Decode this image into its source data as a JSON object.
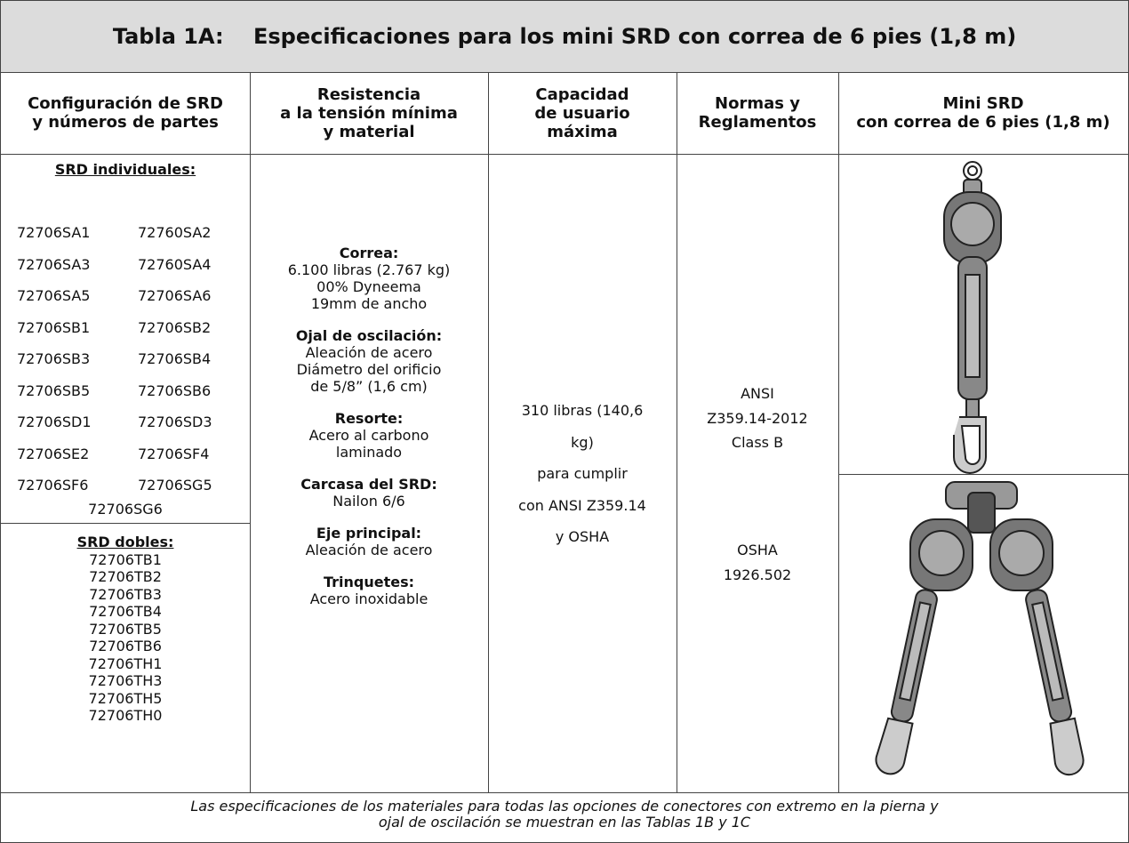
{
  "title": {
    "label": "Tabla 1A:",
    "text": "Especificaciones para los mini SRD con correa de 6 pies (1,8 m)"
  },
  "headers": [
    [
      "Configuración de SRD",
      "y números de partes"
    ],
    [
      "Resistencia",
      "a la tensión mínima",
      "y material"
    ],
    [
      "Capacidad",
      "de usuario",
      "máxima"
    ],
    [
      "Normas y",
      "Reglamentos"
    ],
    [
      "Mini SRD",
      "con correa de 6 pies (1,8 m)"
    ]
  ],
  "individual": {
    "label": "SRD individuales:",
    "rows": [
      [
        "72706SA1",
        "72760SA2"
      ],
      [
        "72706SA3",
        "72760SA4"
      ],
      [
        "72706SA5",
        "72706SA6"
      ],
      [
        "72706SB1",
        "72706SB2"
      ],
      [
        "72706SB3",
        "72706SB4"
      ],
      [
        "72706SB5",
        "72706SB6"
      ],
      [
        "72706SD1",
        "72706SD3"
      ],
      [
        "72706SE2",
        "72706SF4"
      ],
      [
        "72706SF6",
        "72706SG5"
      ]
    ],
    "last": "72706SG6"
  },
  "double": {
    "label": "SRD dobles:",
    "parts": [
      "72706TB1",
      "72706TB2",
      "72706TB3",
      "72706TB4",
      "72706TB5",
      "72706TB6",
      "72706TH1",
      "72706TH3",
      "72706TH5",
      "72706TH0"
    ]
  },
  "resistance": [
    {
      "heading": "Correa:",
      "lines": [
        "6.100 libras (2.767 kg)",
        "00% Dyneema",
        "19mm de ancho"
      ]
    },
    {
      "heading": "Ojal de oscilación:",
      "lines": [
        "Aleación de acero",
        "Diámetro del orificio",
        "de 5/8” (1,6 cm)"
      ]
    },
    {
      "heading": "Resorte:",
      "lines": [
        "Acero al carbono",
        "laminado"
      ]
    },
    {
      "heading": "Carcasa del SRD:",
      "lines": [
        "Nailon 6/6"
      ]
    },
    {
      "heading": "Eje principal:",
      "lines": [
        "Aleación de acero"
      ]
    },
    {
      "heading": "Trinquetes:",
      "lines": [
        "Acero inoxidable"
      ]
    }
  ],
  "capacity": [
    "310 libras (140,6",
    "kg)",
    "para cumplir",
    "con ANSI Z359.14",
    "y OSHA"
  ],
  "standards": [
    [
      "ANSI",
      "Z359.14-2012",
      "Class B"
    ],
    [
      "OSHA",
      "1926.502"
    ]
  ],
  "footer": [
    "Las especificaciones de los materiales para todas las opciones de conectores con extremo en la pierna y",
    "ojal de oscilación se muestran en las Tablas 1B y 1C"
  ]
}
